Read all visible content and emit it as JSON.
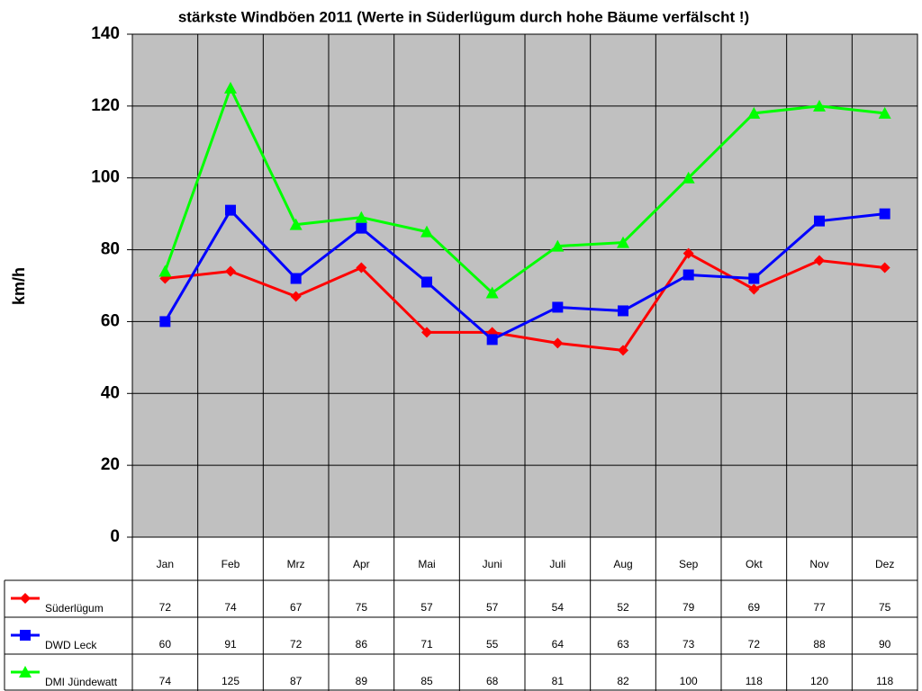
{
  "chart_data": {
    "type": "line",
    "title": "stärkste Windböen 2011 (Werte in Süderlügum durch hohe Bäume verfälscht !)",
    "y_label": "km/h",
    "categories": [
      "Jan",
      "Feb",
      "Mrz",
      "Apr",
      "Mai",
      "Juni",
      "Juli",
      "Aug",
      "Sep",
      "Okt",
      "Nov",
      "Dez"
    ],
    "series": [
      {
        "name": "Süderlügum",
        "color": "#ff0000",
        "marker": "diamond",
        "values": [
          72,
          74,
          67,
          75,
          57,
          57,
          54,
          52,
          79,
          69,
          77,
          75
        ]
      },
      {
        "name": "DWD Leck",
        "color": "#0000ff",
        "marker": "square",
        "values": [
          60,
          91,
          72,
          86,
          71,
          55,
          64,
          63,
          73,
          72,
          88,
          90
        ]
      },
      {
        "name": "DMI Jündewatt",
        "color": "#00ff00",
        "marker": "triangle",
        "values": [
          74,
          125,
          87,
          89,
          85,
          68,
          81,
          82,
          100,
          118,
          120,
          118
        ]
      }
    ],
    "ylim": [
      0,
      140
    ],
    "yticks": [
      0,
      20,
      40,
      60,
      80,
      100,
      120,
      140
    ],
    "grid": true,
    "plot_background": "#c0c0c0"
  }
}
